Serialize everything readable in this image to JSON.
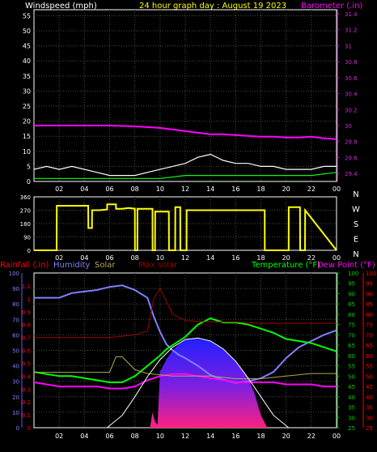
{
  "colors": {
    "background": "#000000",
    "plot_bg": "#000000",
    "grid": "#4a4a4a",
    "axis": "#ffffff",
    "white": "#ffffff",
    "yellow": "#ffff00",
    "magenta": "#ff00ff",
    "lime": "#00ff00",
    "green_axis": "#00cc00",
    "blue": "#5a5aff",
    "red": "#ff0000",
    "pink": "#ff3399",
    "darkred": "#a00000",
    "olive": "#aaaa55",
    "humidity": "#8080ff",
    "baro_axis": "#cc33cc"
  },
  "chart_data": [
    {
      "id": "wind",
      "type": "line",
      "title": "24 hour graph day : August 19 2023",
      "left_label": "Windspeed (mph)",
      "right_label": "Barometer (.in)",
      "x_ticks": [
        "02",
        "04",
        "06",
        "08",
        "10",
        "12",
        "14",
        "16",
        "18",
        "20",
        "22",
        "00"
      ],
      "x_range": [
        0,
        24
      ],
      "y_left_ticks": [
        "55",
        "50",
        "45",
        "40",
        "35",
        "30",
        "25",
        "20",
        "15",
        "10",
        "5",
        "0"
      ],
      "y_left_range": [
        0,
        57
      ],
      "y_right_ticks": [
        "31.4",
        "31.2",
        "31",
        "30.8",
        "30.6",
        "30.4",
        "30.2",
        "30",
        "29.8",
        "29.6",
        "29.4"
      ],
      "y_right_range": [
        29.3,
        31.45
      ],
      "series": [
        {
          "key": "barometer",
          "axis": "right",
          "color": "magenta",
          "x": [
            0,
            2,
            4,
            6,
            8,
            10,
            11,
            12,
            13,
            14,
            15,
            16,
            17,
            18,
            19,
            20,
            21,
            22,
            23,
            24
          ],
          "y": [
            30.0,
            30.0,
            30.0,
            30.0,
            29.99,
            29.97,
            29.95,
            29.93,
            29.91,
            29.89,
            29.89,
            29.88,
            29.87,
            29.86,
            29.86,
            29.85,
            29.85,
            29.86,
            29.84,
            29.83
          ]
        },
        {
          "key": "gust",
          "axis": "left",
          "color": "white",
          "x": [
            0,
            1,
            2,
            3,
            4,
            5,
            6,
            7,
            8,
            9,
            10,
            11,
            12,
            13,
            14,
            15,
            16,
            17,
            18,
            19,
            20,
            21,
            22,
            23,
            24
          ],
          "y": [
            4,
            5,
            4,
            5,
            4,
            3,
            2,
            2,
            2,
            3,
            4,
            5,
            6,
            8,
            9,
            7,
            6,
            6,
            5,
            5,
            4,
            4,
            4,
            5,
            5
          ]
        },
        {
          "key": "average",
          "axis": "left",
          "color": "lime",
          "x": [
            0,
            2,
            4,
            6,
            8,
            10,
            12,
            14,
            16,
            18,
            20,
            22,
            24
          ],
          "y": [
            1,
            1,
            1,
            1,
            1,
            1,
            2,
            2,
            2,
            2,
            2,
            2,
            3
          ]
        }
      ]
    },
    {
      "id": "direction",
      "type": "line",
      "x_ticks": [
        "02",
        "04",
        "06",
        "08",
        "10",
        "12",
        "14",
        "16",
        "18",
        "20",
        "22",
        "00"
      ],
      "x_range": [
        0,
        24
      ],
      "y_ticks": [
        "360",
        "270",
        "180",
        "90",
        "0"
      ],
      "y_range": [
        0,
        360
      ],
      "right_letters": [
        "N",
        "W",
        "S",
        "E",
        "N"
      ],
      "series": [
        {
          "key": "direction",
          "color": "yellow",
          "x": [
            0,
            1.8,
            1.81,
            4.3,
            4.31,
            4.6,
            4.61,
            5.2,
            5.21,
            5.8,
            5.81,
            6.5,
            6.51,
            7,
            7.5,
            8,
            8.01,
            8.2,
            8.21,
            9.4,
            9.41,
            9.6,
            9.61,
            10.7,
            10.71,
            11.2,
            11.21,
            11.6,
            11.61,
            12.1,
            12.11,
            14,
            16,
            18.3,
            18.31,
            19.0,
            19.01,
            20.2,
            20.21,
            21.1,
            21.11,
            21.5,
            21.51,
            24
          ],
          "y": [
            0,
            0,
            300,
            300,
            150,
            150,
            270,
            270,
            270,
            275,
            310,
            310,
            280,
            280,
            285,
            280,
            0,
            0,
            280,
            280,
            0,
            0,
            260,
            260,
            0,
            0,
            290,
            290,
            0,
            0,
            270,
            270,
            270,
            270,
            0,
            0,
            0,
            0,
            290,
            290,
            0,
            0,
            270,
            0
          ]
        }
      ]
    },
    {
      "id": "weather",
      "type": "area",
      "labels": {
        "rainfall": "Rainfall (.in)",
        "humidity": "Humidity",
        "solar": "Solar",
        "max_solar": "Max solar",
        "temperature": "Temperature (°F)",
        "dewpoint": "Dew Point (°F)"
      },
      "x_ticks": [
        "02",
        "04",
        "06",
        "08",
        "10",
        "12",
        "14",
        "16",
        "18",
        "20",
        "22",
        "00"
      ],
      "x_range": [
        0,
        24
      ],
      "y_humidity_ticks": [
        "100",
        "90",
        "80",
        "70",
        "60",
        "50",
        "40",
        "30",
        "20",
        "10",
        "0"
      ],
      "y_humidity_range": [
        0,
        100
      ],
      "y_rain_ticks": [
        "1.1",
        "1",
        "0.9",
        "0.8",
        "0.7",
        "0.6",
        "0.5",
        "0.4",
        "0.3",
        "0.2",
        "0.1",
        "0"
      ],
      "y_rain_range": [
        0,
        1.2
      ],
      "y_temp_ticks": [
        "100",
        "95",
        "90",
        "85",
        "80",
        "75",
        "70",
        "65",
        "60",
        "55",
        "50",
        "45",
        "40",
        "35",
        "30",
        "25"
      ],
      "y_temp_range": [
        25,
        100
      ],
      "y_dew_ticks": [
        "100",
        "95",
        "90",
        "85",
        "80",
        "75",
        "70",
        "65",
        "60",
        "55",
        "50",
        "45",
        "40",
        "35",
        "30",
        "25"
      ],
      "series": [
        {
          "key": "humidity",
          "axis": "humidity",
          "color": "humidity",
          "x": [
            0,
            1,
            2,
            3,
            4,
            5,
            6,
            7,
            8,
            9,
            9.5,
            10,
            10.5,
            11,
            11.5,
            12,
            13,
            14,
            15,
            16,
            17,
            18,
            19,
            20,
            21,
            22,
            23,
            24
          ],
          "y": [
            84,
            84,
            84,
            87,
            88,
            89,
            91,
            92,
            89,
            84,
            72,
            62,
            54,
            50,
            47,
            45,
            40,
            34,
            31,
            29,
            30,
            32,
            36,
            45,
            52,
            56,
            60,
            63
          ]
        },
        {
          "key": "temperature",
          "axis": "temp",
          "color": "lime",
          "x": [
            0,
            1,
            2,
            3,
            4,
            5,
            6,
            7,
            8,
            9,
            10,
            10.5,
            11,
            12,
            13,
            14,
            15,
            16,
            17,
            18,
            19,
            20,
            21,
            22,
            23,
            24
          ],
          "y": [
            52,
            51,
            50,
            50,
            49,
            48,
            47,
            47,
            50,
            55,
            60,
            63,
            65,
            69,
            75,
            78,
            76,
            76,
            75,
            73,
            71,
            68,
            67,
            66,
            64,
            62
          ]
        },
        {
          "key": "dewpoint",
          "axis": "temp",
          "color": "magenta",
          "x": [
            0,
            1,
            2,
            3,
            4,
            5,
            6,
            7,
            8,
            9,
            10,
            11,
            12,
            13,
            14,
            15,
            16,
            17,
            18,
            19,
            20,
            21,
            22,
            23,
            24
          ],
          "y": [
            47,
            46,
            45,
            45,
            45,
            45,
            44,
            44,
            45,
            48,
            50,
            51,
            51,
            50,
            49,
            48,
            47,
            47,
            47,
            47,
            46,
            46,
            46,
            45,
            45
          ]
        },
        {
          "key": "max_solar_level",
          "axis": "rain",
          "color": "darkred",
          "x": [
            0,
            2,
            4,
            6,
            8,
            9,
            9.5,
            10,
            11,
            12,
            14,
            16,
            18,
            20,
            22,
            24
          ],
          "y": [
            0.7,
            0.7,
            0.7,
            0.7,
            0.72,
            0.75,
            1.0,
            1.08,
            0.88,
            0.83,
            0.82,
            0.82,
            0.81,
            0.81,
            0.81,
            0.81
          ]
        },
        {
          "key": "solar_level",
          "axis": "rain",
          "color": "olive",
          "x": [
            0,
            2,
            4,
            6,
            6.5,
            7,
            8,
            9,
            10,
            11,
            12,
            14,
            16,
            18,
            20,
            22,
            24
          ],
          "y": [
            0.43,
            0.43,
            0.43,
            0.43,
            0.55,
            0.55,
            0.45,
            0.42,
            0.41,
            0.4,
            0.4,
            0.4,
            0.38,
            0.38,
            0.4,
            0.42,
            0.42
          ]
        },
        {
          "key": "max_solar_curve",
          "axis": "humidity",
          "color": "white",
          "x": [
            5.8,
            7,
            8,
            9,
            10,
            11,
            12,
            13,
            14,
            15,
            16,
            17,
            18,
            19,
            20.2
          ],
          "y": [
            0,
            8,
            20,
            33,
            44,
            52,
            57,
            58,
            56,
            51,
            43,
            32,
            20,
            8,
            0
          ]
        },
        {
          "key": "solar_area",
          "axis": "humidity",
          "color": "blue",
          "x": [
            9.2,
            9.4,
            9.6,
            9.8,
            10,
            10.5,
            11,
            11.5,
            12,
            13,
            14,
            15,
            16,
            17,
            17.5,
            18,
            18.5
          ],
          "y": [
            0,
            10,
            4,
            2,
            36,
            44,
            50,
            54,
            57,
            58,
            56,
            51,
            43,
            32,
            22,
            8,
            0
          ]
        }
      ]
    }
  ]
}
